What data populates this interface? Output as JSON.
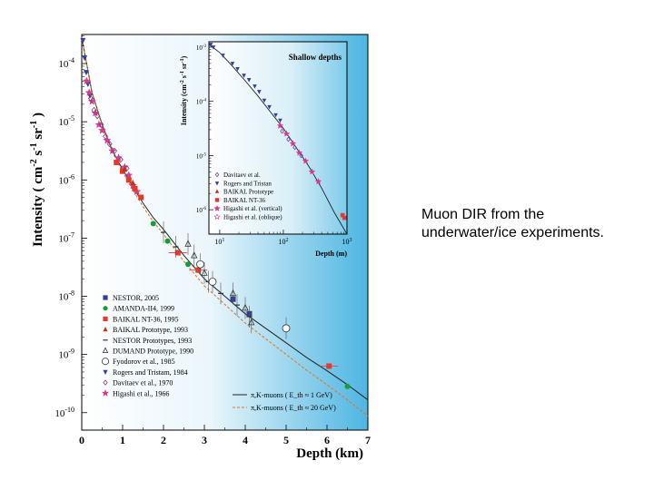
{
  "caption": {
    "line1": "Muon DIR from the",
    "line2": "underwater/ice experiments."
  },
  "chart_data": [
    {
      "type": "scatter",
      "title": "",
      "xlabel": "Depth (km)",
      "ylabel": "Intensity ( cm^-2 s^-1 sr^-1 )",
      "ylabel_parts": {
        "main": "Intensity  ( cm",
        "e1": "-2",
        "mid1": "s",
        "e2": "-1",
        "mid2": "sr",
        "e3": "-1",
        "end": ")"
      },
      "xlim": [
        0,
        7
      ],
      "ylim_log10": [
        -10.3,
        -3.5
      ],
      "yscale": "log",
      "x_ticks": [
        "0",
        "1",
        "2",
        "3",
        "4",
        "5",
        "6",
        "7"
      ],
      "y_ticks": [
        {
          "base": "10",
          "exp": "-4",
          "v": -4
        },
        {
          "base": "10",
          "exp": "-5",
          "v": -5
        },
        {
          "base": "10",
          "exp": "-6",
          "v": -6
        },
        {
          "base": "10",
          "exp": "-7",
          "v": -7
        },
        {
          "base": "10",
          "exp": "-8",
          "v": -8
        },
        {
          "base": "10",
          "exp": "-9",
          "v": -9
        },
        {
          "base": "10",
          "exp": "-10",
          "v": -10
        }
      ],
      "legend_position": "bottom-left",
      "legend": [
        {
          "label": "NESTOR, 2005",
          "marker": "square",
          "color": "#2b3f9c"
        },
        {
          "label": "AMANDA-II4, 1999",
          "marker": "circle",
          "color": "#1a9a3a"
        },
        {
          "label": "BAIKAL NT-36, 1995",
          "marker": "square",
          "color": "#e23b2b"
        },
        {
          "label": "BAIKAL Prototype, 1993",
          "marker": "triangle",
          "color": "#b43a1c"
        },
        {
          "label": "NESTOR Prototypes, 1993",
          "marker": "bar",
          "color": "#333333"
        },
        {
          "label": "DUMAND Prototype, 1990",
          "marker": "triangle-open",
          "color": "#333333"
        },
        {
          "label": "Fyodorov et al., 1985",
          "marker": "circle-open",
          "color": "#333333"
        },
        {
          "label": "Rogers and Tristam, 1984",
          "marker": "triangle-down",
          "color": "#2f3fa8"
        },
        {
          "label": "Davitaev et al., 1970",
          "marker": "diamond-open",
          "color": "#7f3fa0"
        },
        {
          "label": "Higashi et al., 1966",
          "marker": "star",
          "color": "#d83a8a"
        }
      ],
      "curve_legend": [
        {
          "label": "π,K-muons ( E_th ≈ 1 GeV)",
          "style": "solid"
        },
        {
          "label": "π,K-muons ( E_th ≈ 20 GeV)",
          "style": "dashed"
        }
      ],
      "curve": {
        "x": [
          0.0,
          0.25,
          0.5,
          0.75,
          1.0,
          1.25,
          1.5,
          1.75,
          2.0,
          2.5,
          3.0,
          3.5,
          4.0,
          4.5,
          5.0,
          5.5,
          6.0,
          6.5,
          7.0
        ],
        "logy": [
          -3.55,
          -4.5,
          -5.05,
          -5.5,
          -5.82,
          -6.12,
          -6.4,
          -6.65,
          -6.85,
          -7.3,
          -7.7,
          -8.0,
          -8.3,
          -8.55,
          -8.8,
          -9.05,
          -9.28,
          -9.52,
          -9.78
        ]
      },
      "points": [
        {
          "series": "Rogers and Tristam, 1984",
          "x": [
            0.03,
            0.07,
            0.11,
            0.15,
            0.2
          ],
          "logy": [
            -3.6,
            -3.9,
            -4.15,
            -4.35,
            -4.55
          ]
        },
        {
          "series": "Higashi et al., 1966",
          "x": [
            0.12,
            0.18,
            0.25,
            0.33,
            0.42,
            0.5,
            0.62,
            0.75,
            0.9,
            1.05,
            1.15,
            1.25,
            1.35
          ],
          "logy": [
            -4.3,
            -4.5,
            -4.65,
            -4.85,
            -5.05,
            -5.15,
            -5.32,
            -5.5,
            -5.62,
            -5.78,
            -5.92,
            -6.1,
            -6.2
          ]
        },
        {
          "series": "Davitaev et al., 1970",
          "x": [
            0.22,
            0.3,
            0.38,
            0.48,
            0.58,
            0.68,
            0.8,
            0.95,
            1.1
          ],
          "logy": [
            -4.6,
            -4.8,
            -4.9,
            -5.05,
            -5.25,
            -5.38,
            -5.5,
            -5.65,
            -5.8
          ]
        },
        {
          "series": "BAIKAL NT-36, 1995",
          "x": [
            0.85,
            1.0,
            1.15,
            1.3,
            1.45,
            2.35,
            2.85,
            6.05
          ],
          "logy": [
            -5.7,
            -5.85,
            -6.0,
            -6.15,
            -6.3,
            -7.25,
            -7.55,
            -9.2
          ]
        },
        {
          "series": "BAIKAL Prototype, 1993",
          "x": [
            1.05,
            1.25
          ],
          "logy": [
            -5.82,
            -6.05
          ]
        },
        {
          "series": "AMANDA-II4, 1999",
          "x": [
            1.75,
            2.1,
            2.6,
            6.5
          ],
          "logy": [
            -6.75,
            -7.05,
            -7.45,
            -9.55
          ]
        },
        {
          "series": "NESTOR, 2005",
          "x": [
            3.7,
            4.1
          ],
          "logy": [
            -8.05,
            -8.3
          ]
        },
        {
          "series": "NESTOR Prototypes, 1993",
          "x": [
            2.0,
            2.3,
            3.1,
            3.4,
            3.8,
            4.1
          ],
          "logy": [
            -6.9,
            -7.15,
            -7.75,
            -7.95,
            -8.15,
            -8.35
          ]
        },
        {
          "series": "DUMAND Prototype, 1990",
          "x": [
            2.6,
            2.75,
            3.0,
            3.7,
            4.0,
            4.15
          ],
          "logy": [
            -7.1,
            -7.3,
            -7.6,
            -7.95,
            -8.2,
            -8.45
          ]
        },
        {
          "series": "Fyodorov et al., 1985",
          "x": [
            2.9,
            3.2,
            5.0
          ],
          "logy": [
            -7.45,
            -7.75,
            -8.55
          ]
        }
      ]
    },
    {
      "type": "scatter",
      "title": "Shallow depths",
      "xlabel": "Depth  (m)",
      "ylabel": "Intensity  (cm^-2 s^-1 sr^-1)",
      "yscale": "log",
      "xscale": "log",
      "xlim_log10": [
        0.83,
        3.0
      ],
      "ylim_log10": [
        -6.45,
        -2.9
      ],
      "x_ticks": [
        {
          "base": "10",
          "exp": "1",
          "v": 1
        },
        {
          "base": "10",
          "exp": "2",
          "v": 2
        },
        {
          "base": "10",
          "exp": "3",
          "v": 3
        }
      ],
      "y_ticks": [
        {
          "base": "10",
          "exp": "-3",
          "v": -3
        },
        {
          "base": "10",
          "exp": "-4",
          "v": -4
        },
        {
          "base": "10",
          "exp": "-5",
          "v": -5
        },
        {
          "base": "10",
          "exp": "-6",
          "v": -6
        }
      ],
      "legend_position": "bottom-left",
      "legend": [
        {
          "label": "Davitaev et al.",
          "marker": "diamond-open",
          "color": "#7f3fa0"
        },
        {
          "label": "Rogers and Tristan",
          "marker": "triangle-down",
          "color": "#2f3fa8"
        },
        {
          "label": "BAIKAL Prototype",
          "marker": "triangle",
          "color": "#b43a1c"
        },
        {
          "label": "BAIKAL NT-36",
          "marker": "square",
          "color": "#e23b2b"
        },
        {
          "label": "Higashi et al. (vertical)",
          "marker": "star",
          "color": "#d83a8a"
        },
        {
          "label": "Higashi et al. (oblique)",
          "marker": "star-open",
          "color": "#d83a8a"
        }
      ],
      "curve": {
        "logx": [
          0.83,
          1.0,
          1.2,
          1.4,
          1.6,
          1.8,
          2.0,
          2.2,
          2.4,
          2.6,
          2.8,
          3.0
        ],
        "logy": [
          -2.95,
          -3.1,
          -3.35,
          -3.62,
          -3.9,
          -4.2,
          -4.5,
          -4.85,
          -5.2,
          -5.6,
          -6.05,
          -6.45
        ]
      },
      "points": [
        {
          "series": "Rogers and Tristan",
          "logx": [
            0.86,
            0.9,
            1.05,
            1.2,
            1.28,
            1.38,
            1.46,
            1.55,
            1.62,
            1.7,
            1.78,
            1.88,
            1.95
          ],
          "logy": [
            -2.95,
            -3.0,
            -3.15,
            -3.3,
            -3.4,
            -3.52,
            -3.6,
            -3.72,
            -3.82,
            -3.98,
            -4.1,
            -4.25,
            -4.35
          ]
        },
        {
          "series": "Higashi et al. (vertical)",
          "logx": [
            1.95,
            2.05,
            2.15,
            2.25,
            2.35,
            2.45,
            2.55
          ],
          "logy": [
            -4.45,
            -4.6,
            -4.78,
            -4.95,
            -5.1,
            -5.3,
            -5.48
          ]
        },
        {
          "series": "Davitaev et al.",
          "logx": [
            1.98,
            2.08,
            2.18,
            2.28
          ],
          "logy": [
            -4.55,
            -4.7,
            -4.85,
            -5.0
          ]
        },
        {
          "series": "BAIKAL NT-36",
          "logx": [
            2.93,
            2.96
          ],
          "logy": [
            -6.1,
            -6.15
          ]
        }
      ]
    }
  ]
}
